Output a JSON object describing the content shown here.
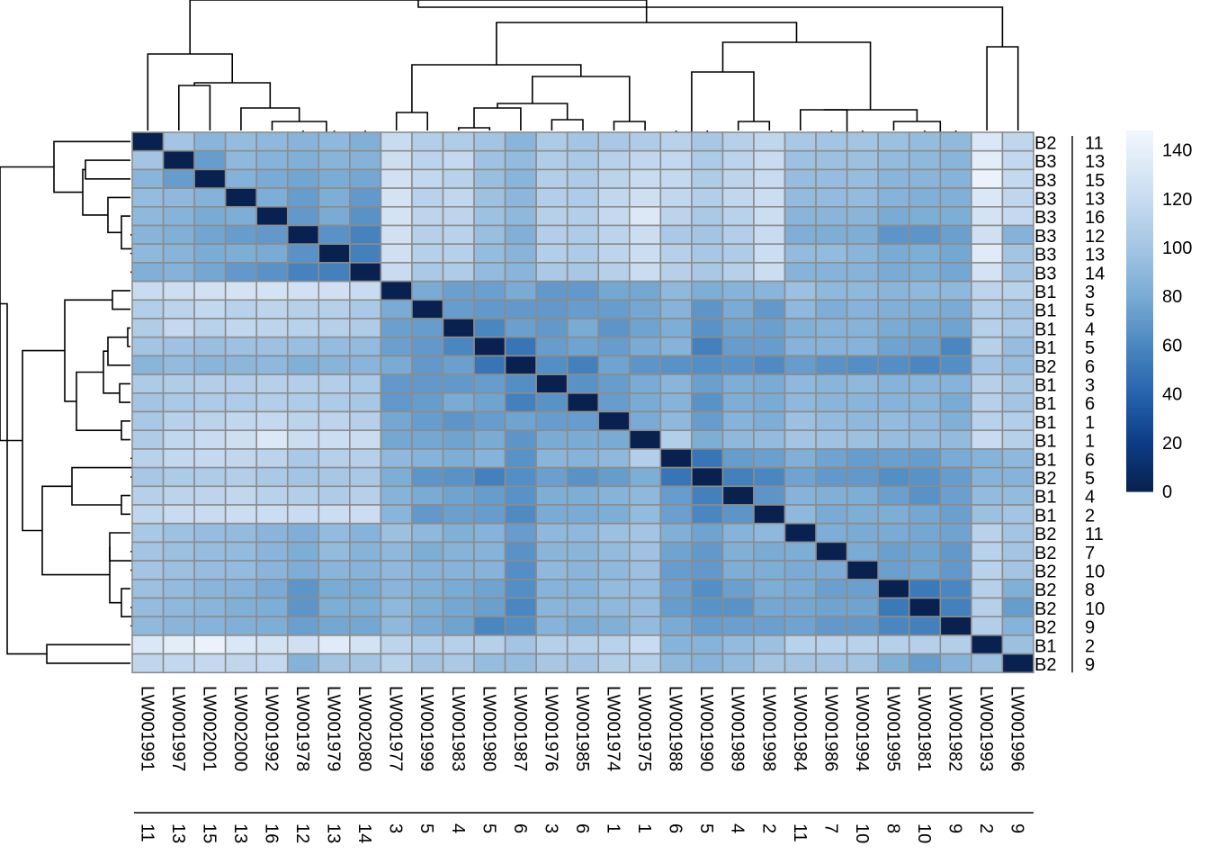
{
  "chart_data": {
    "type": "heatmap",
    "title": "",
    "columns": [
      {
        "id": "LW001991",
        "group": "11"
      },
      {
        "id": "LW001997",
        "group": "13"
      },
      {
        "id": "LW002001",
        "group": "15"
      },
      {
        "id": "LW002000",
        "group": "13"
      },
      {
        "id": "LW001992",
        "group": "16"
      },
      {
        "id": "LW001978",
        "group": "12"
      },
      {
        "id": "LW001979",
        "group": "13"
      },
      {
        "id": "LW002080",
        "group": "14"
      },
      {
        "id": "LW001977",
        "group": "3"
      },
      {
        "id": "LW001999",
        "group": "5"
      },
      {
        "id": "LW001983",
        "group": "4"
      },
      {
        "id": "LW001980",
        "group": "5"
      },
      {
        "id": "LW001987",
        "group": "6"
      },
      {
        "id": "LW001976",
        "group": "3"
      },
      {
        "id": "LW001985",
        "group": "6"
      },
      {
        "id": "LW001974",
        "group": "1"
      },
      {
        "id": "LW001975",
        "group": "1"
      },
      {
        "id": "LW001988",
        "group": "6"
      },
      {
        "id": "LW001990",
        "group": "5"
      },
      {
        "id": "LW001989",
        "group": "4"
      },
      {
        "id": "LW001998",
        "group": "2"
      },
      {
        "id": "LW001984",
        "group": "11"
      },
      {
        "id": "LW001986",
        "group": "7"
      },
      {
        "id": "LW001994",
        "group": "10"
      },
      {
        "id": "LW001995",
        "group": "8"
      },
      {
        "id": "LW001981",
        "group": "10"
      },
      {
        "id": "LW001982",
        "group": "9"
      },
      {
        "id": "LW001993",
        "group": "2"
      },
      {
        "id": "LW001996",
        "group": "9"
      }
    ],
    "rows": [
      {
        "batch": "B2",
        "group": "11"
      },
      {
        "batch": "B3",
        "group": "13"
      },
      {
        "batch": "B3",
        "group": "15"
      },
      {
        "batch": "B3",
        "group": "13"
      },
      {
        "batch": "B3",
        "group": "16"
      },
      {
        "batch": "B3",
        "group": "12"
      },
      {
        "batch": "B3",
        "group": "13"
      },
      {
        "batch": "B3",
        "group": "14"
      },
      {
        "batch": "B1",
        "group": "3"
      },
      {
        "batch": "B1",
        "group": "5"
      },
      {
        "batch": "B1",
        "group": "4"
      },
      {
        "batch": "B1",
        "group": "5"
      },
      {
        "batch": "B2",
        "group": "6"
      },
      {
        "batch": "B1",
        "group": "3"
      },
      {
        "batch": "B1",
        "group": "6"
      },
      {
        "batch": "B1",
        "group": "1"
      },
      {
        "batch": "B1",
        "group": "1"
      },
      {
        "batch": "B1",
        "group": "6"
      },
      {
        "batch": "B2",
        "group": "5"
      },
      {
        "batch": "B1",
        "group": "4"
      },
      {
        "batch": "B1",
        "group": "2"
      },
      {
        "batch": "B2",
        "group": "11"
      },
      {
        "batch": "B2",
        "group": "7"
      },
      {
        "batch": "B2",
        "group": "10"
      },
      {
        "batch": "B2",
        "group": "8"
      },
      {
        "batch": "B2",
        "group": "10"
      },
      {
        "batch": "B2",
        "group": "9"
      },
      {
        "batch": "B1",
        "group": "2"
      },
      {
        "batch": "B2",
        "group": "9"
      }
    ],
    "color_scale": {
      "min": 0,
      "max": 148,
      "ticks": [
        "0",
        "20",
        "40",
        "60",
        "80",
        "100",
        "120",
        "140"
      ],
      "tick_values": [
        0,
        20,
        40,
        60,
        80,
        100,
        120,
        140
      ],
      "stops": [
        {
          "value": 0,
          "color": "#08214f"
        },
        {
          "value": 20,
          "color": "#0d3c86"
        },
        {
          "value": 40,
          "color": "#2663ad"
        },
        {
          "value": 60,
          "color": "#4a87c0"
        },
        {
          "value": 80,
          "color": "#79abd4"
        },
        {
          "value": 100,
          "color": "#a3c5e3"
        },
        {
          "value": 120,
          "color": "#c8dbf0"
        },
        {
          "value": 148,
          "color": "#f2f7fd"
        }
      ]
    },
    "cell_border_color": "#8c8c8c",
    "values_note": "Symmetric distance matrix (approximate, read from colour); diagonal = 0",
    "values": [
      [
        0,
        100,
        88,
        93,
        90,
        87,
        90,
        84,
        120,
        108,
        107,
        100,
        88,
        105,
        100,
        103,
        106,
        112,
        102,
        110,
        115,
        103,
        100,
        100,
        96,
        93,
        91,
        132,
        115
      ],
      [
        100,
        0,
        72,
        90,
        86,
        84,
        87,
        85,
        123,
        113,
        118,
        98,
        92,
        107,
        104,
        111,
        116,
        117,
        105,
        113,
        120,
        97,
        96,
        96,
        92,
        90,
        88,
        138,
        117
      ],
      [
        88,
        72,
        0,
        85,
        80,
        77,
        81,
        78,
        126,
        117,
        112,
        95,
        88,
        108,
        105,
        113,
        120,
        118,
        106,
        114,
        120,
        94,
        94,
        94,
        88,
        88,
        86,
        143,
        118
      ],
      [
        93,
        90,
        85,
        0,
        82,
        72,
        82,
        70,
        128,
        112,
        116,
        97,
        89,
        108,
        106,
        116,
        124,
        116,
        108,
        116,
        122,
        92,
        92,
        92,
        86,
        84,
        84,
        132,
        115
      ],
      [
        90,
        86,
        80,
        82,
        0,
        70,
        80,
        66,
        128,
        114,
        114,
        97,
        90,
        110,
        108,
        118,
        133,
        113,
        104,
        112,
        122,
        88,
        88,
        88,
        80,
        82,
        82,
        128,
        118
      ],
      [
        87,
        84,
        77,
        72,
        70,
        0,
        66,
        58,
        126,
        110,
        112,
        95,
        84,
        108,
        106,
        113,
        122,
        104,
        100,
        108,
        120,
        83,
        82,
        82,
        68,
        68,
        74,
        125,
        85
      ],
      [
        90,
        87,
        81,
        82,
        80,
        66,
        0,
        56,
        125,
        110,
        110,
        93,
        87,
        108,
        105,
        114,
        122,
        110,
        102,
        106,
        122,
        92,
        92,
        88,
        80,
        82,
        78,
        136,
        100
      ],
      [
        84,
        85,
        78,
        70,
        66,
        58,
        56,
        0,
        120,
        104,
        106,
        92,
        88,
        104,
        102,
        110,
        121,
        110,
        103,
        110,
        122,
        86,
        86,
        86,
        80,
        82,
        78,
        128,
        100
      ],
      [
        120,
        123,
        126,
        128,
        128,
        126,
        125,
        120,
        0,
        80,
        74,
        74,
        80,
        70,
        70,
        78,
        78,
        90,
        82,
        86,
        88,
        96,
        90,
        90,
        88,
        90,
        90,
        114,
        112
      ],
      [
        108,
        113,
        117,
        112,
        114,
        110,
        110,
        104,
        80,
        0,
        72,
        70,
        70,
        70,
        72,
        72,
        78,
        86,
        68,
        80,
        70,
        90,
        82,
        86,
        84,
        82,
        80,
        108,
        100
      ],
      [
        107,
        118,
        112,
        116,
        114,
        112,
        110,
        106,
        74,
        72,
        0,
        60,
        74,
        70,
        80,
        68,
        76,
        82,
        66,
        76,
        74,
        84,
        86,
        86,
        80,
        78,
        76,
        110,
        104
      ],
      [
        100,
        98,
        95,
        97,
        97,
        95,
        93,
        92,
        74,
        70,
        60,
        0,
        50,
        72,
        76,
        72,
        80,
        86,
        56,
        72,
        72,
        86,
        86,
        86,
        76,
        74,
        60,
        110,
        94
      ],
      [
        88,
        92,
        88,
        89,
        90,
        84,
        87,
        88,
        80,
        70,
        74,
        50,
        0,
        64,
        56,
        76,
        68,
        66,
        64,
        66,
        62,
        72,
        66,
        64,
        64,
        60,
        64,
        100,
        94
      ],
      [
        105,
        107,
        108,
        108,
        110,
        108,
        108,
        104,
        70,
        70,
        70,
        72,
        64,
        0,
        66,
        72,
        80,
        88,
        74,
        82,
        80,
        90,
        88,
        90,
        86,
        88,
        86,
        110,
        102
      ],
      [
        100,
        104,
        105,
        106,
        108,
        106,
        105,
        102,
        70,
        72,
        80,
        76,
        56,
        66,
        0,
        72,
        80,
        86,
        66,
        82,
        80,
        90,
        88,
        88,
        86,
        88,
        80,
        110,
        100
      ],
      [
        103,
        111,
        113,
        116,
        118,
        113,
        114,
        110,
        78,
        72,
        68,
        72,
        76,
        72,
        72,
        0,
        80,
        90,
        72,
        86,
        82,
        96,
        92,
        90,
        92,
        90,
        84,
        112,
        108
      ],
      [
        106,
        116,
        120,
        124,
        133,
        122,
        122,
        121,
        78,
        78,
        76,
        80,
        68,
        80,
        80,
        80,
        0,
        108,
        82,
        90,
        92,
        100,
        98,
        96,
        94,
        94,
        92,
        120,
        110
      ],
      [
        112,
        117,
        118,
        116,
        113,
        104,
        110,
        110,
        90,
        86,
        82,
        86,
        66,
        88,
        86,
        90,
        108,
        0,
        50,
        72,
        74,
        84,
        76,
        72,
        74,
        72,
        80,
        86,
        90
      ],
      [
        102,
        105,
        106,
        108,
        104,
        100,
        102,
        103,
        82,
        68,
        66,
        56,
        64,
        74,
        66,
        72,
        82,
        50,
        0,
        56,
        60,
        76,
        70,
        70,
        64,
        66,
        72,
        86,
        86
      ],
      [
        110,
        113,
        114,
        116,
        112,
        108,
        106,
        110,
        86,
        80,
        76,
        72,
        66,
        82,
        82,
        86,
        90,
        72,
        56,
        0,
        68,
        86,
        84,
        82,
        74,
        66,
        74,
        92,
        92
      ],
      [
        115,
        120,
        120,
        122,
        122,
        120,
        122,
        122,
        88,
        70,
        74,
        72,
        62,
        80,
        80,
        82,
        92,
        74,
        60,
        68,
        0,
        90,
        80,
        82,
        82,
        78,
        74,
        96,
        100
      ],
      [
        103,
        97,
        94,
        92,
        88,
        83,
        92,
        86,
        96,
        90,
        84,
        86,
        72,
        90,
        90,
        96,
        100,
        84,
        76,
        86,
        90,
        0,
        82,
        80,
        80,
        78,
        76,
        112,
        100
      ],
      [
        100,
        96,
        94,
        92,
        88,
        82,
        92,
        86,
        90,
        82,
        86,
        86,
        66,
        88,
        88,
        92,
        98,
        76,
        70,
        84,
        80,
        82,
        0,
        80,
        74,
        76,
        70,
        112,
        100
      ],
      [
        100,
        96,
        94,
        92,
        88,
        82,
        88,
        86,
        90,
        86,
        86,
        86,
        64,
        90,
        88,
        90,
        96,
        72,
        70,
        82,
        82,
        80,
        80,
        0,
        74,
        76,
        70,
        112,
        100
      ],
      [
        96,
        92,
        88,
        86,
        80,
        68,
        80,
        80,
        88,
        84,
        80,
        76,
        64,
        86,
        86,
        92,
        94,
        74,
        64,
        74,
        82,
        80,
        74,
        74,
        0,
        52,
        60,
        110,
        84
      ],
      [
        93,
        90,
        88,
        84,
        82,
        68,
        82,
        82,
        90,
        82,
        78,
        74,
        60,
        88,
        88,
        90,
        94,
        72,
        66,
        66,
        78,
        78,
        76,
        76,
        52,
        0,
        56,
        110,
        72
      ],
      [
        91,
        88,
        86,
        84,
        82,
        74,
        78,
        78,
        90,
        80,
        76,
        60,
        64,
        86,
        80,
        84,
        92,
        80,
        72,
        74,
        74,
        76,
        70,
        70,
        60,
        56,
        0,
        108,
        86
      ],
      [
        132,
        138,
        143,
        132,
        128,
        125,
        136,
        128,
        114,
        108,
        110,
        110,
        100,
        110,
        110,
        112,
        120,
        86,
        86,
        92,
        96,
        112,
        112,
        112,
        110,
        110,
        108,
        0,
        96
      ],
      [
        115,
        117,
        118,
        115,
        118,
        85,
        100,
        100,
        112,
        100,
        104,
        94,
        94,
        102,
        100,
        108,
        110,
        90,
        86,
        92,
        100,
        100,
        100,
        100,
        84,
        72,
        86,
        96,
        0
      ]
    ]
  }
}
